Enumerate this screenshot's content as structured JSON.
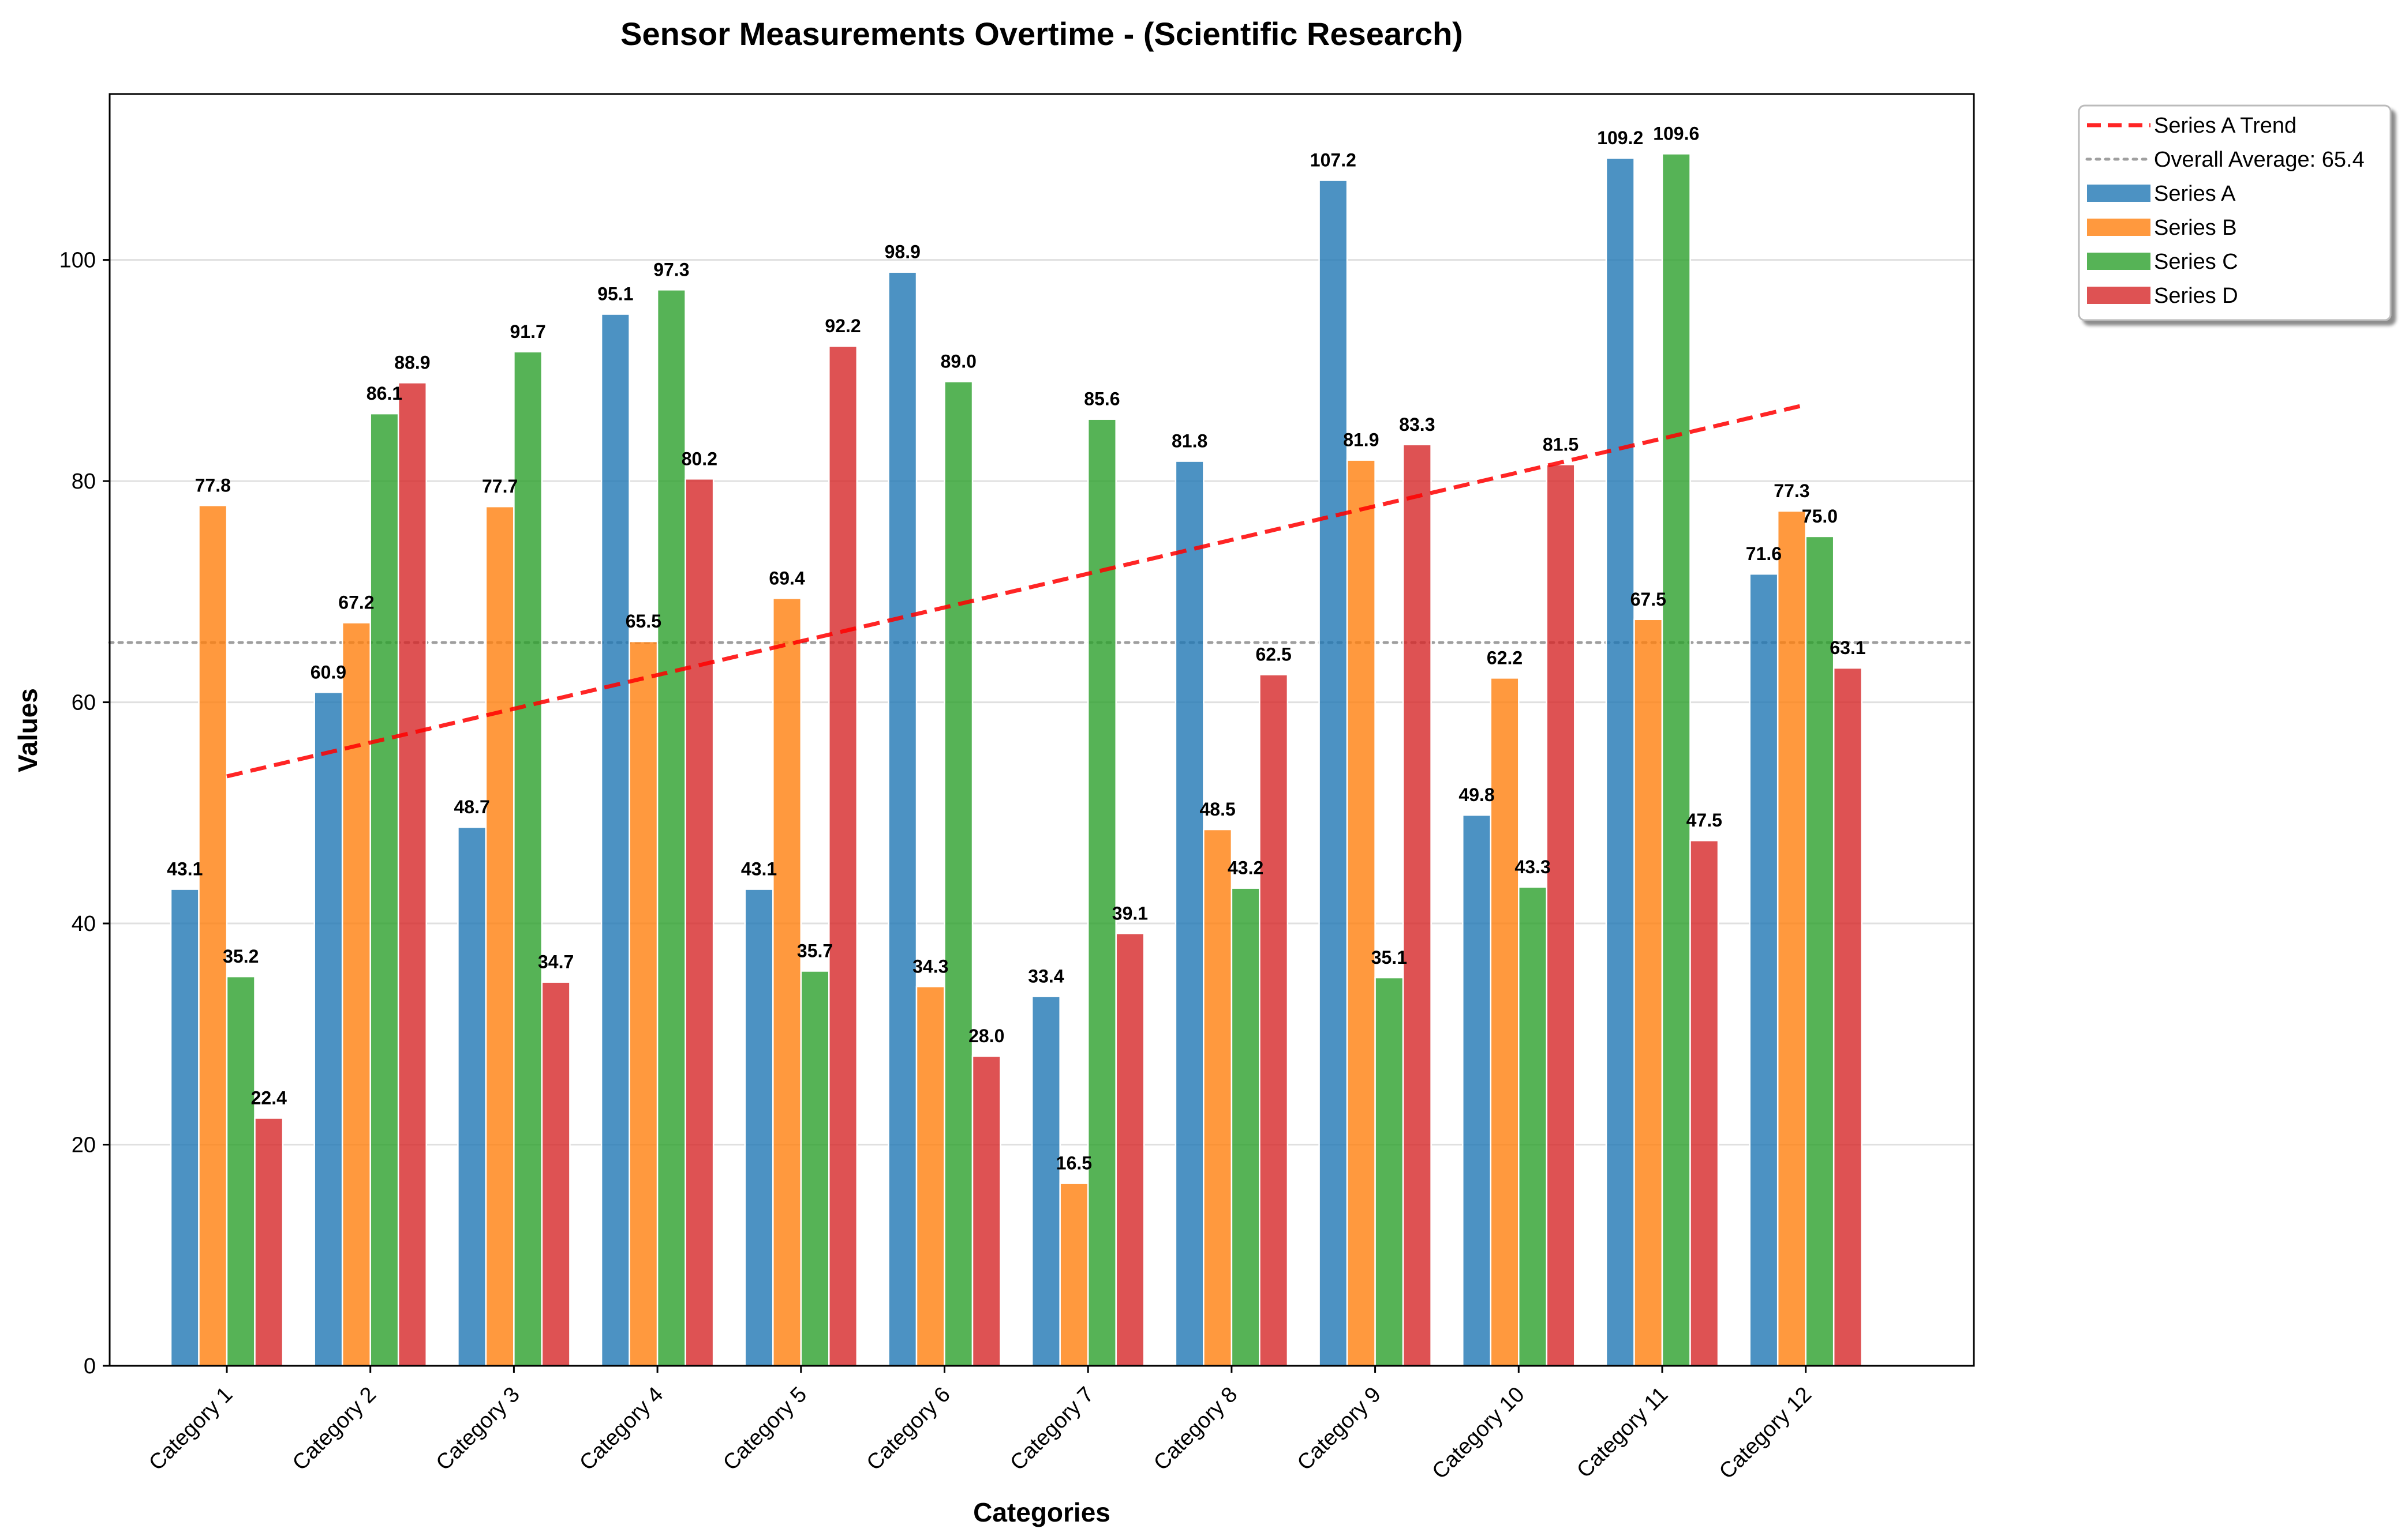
{
  "chart_data": {
    "type": "bar",
    "title": "Sensor Measurements Overtime - (Scientific Research)",
    "xlabel": "Categories",
    "ylabel": "Values",
    "ylim": [
      0,
      115
    ],
    "yticks": [
      0,
      20,
      40,
      60,
      80,
      100
    ],
    "grid": "horizontal",
    "legend_position": "outside top-right",
    "categories": [
      "Category 1",
      "Category 2",
      "Category 3",
      "Category 4",
      "Category 5",
      "Category 6",
      "Category 7",
      "Category 8",
      "Category 9",
      "Category 10",
      "Category 11",
      "Category 12"
    ],
    "series": [
      {
        "name": "Series A",
        "color": "#1f77b4",
        "values": [
          43.1,
          60.9,
          48.7,
          95.1,
          43.1,
          98.9,
          33.4,
          81.8,
          107.2,
          49.8,
          109.2,
          71.6
        ]
      },
      {
        "name": "Series B",
        "color": "#ff7f0e",
        "values": [
          77.8,
          67.2,
          77.7,
          65.5,
          69.4,
          34.3,
          16.5,
          48.5,
          81.9,
          62.2,
          67.5,
          77.3
        ]
      },
      {
        "name": "Series C",
        "color": "#2ca02c",
        "values": [
          35.2,
          86.1,
          91.7,
          97.3,
          35.7,
          89.0,
          85.6,
          43.2,
          35.1,
          43.3,
          109.6,
          75.0
        ]
      },
      {
        "name": "Series D",
        "color": "#d62728",
        "values": [
          22.4,
          88.9,
          34.7,
          80.2,
          92.2,
          28.0,
          39.1,
          62.5,
          83.3,
          81.5,
          47.5,
          63.1
        ]
      }
    ],
    "trend_line": {
      "name": "Series A Trend",
      "color": "#ff0000",
      "start": 53.3,
      "end": 86.9
    },
    "average_line": {
      "name": "Overall Average: 65.4",
      "color": "#808080",
      "value": 65.4
    }
  }
}
